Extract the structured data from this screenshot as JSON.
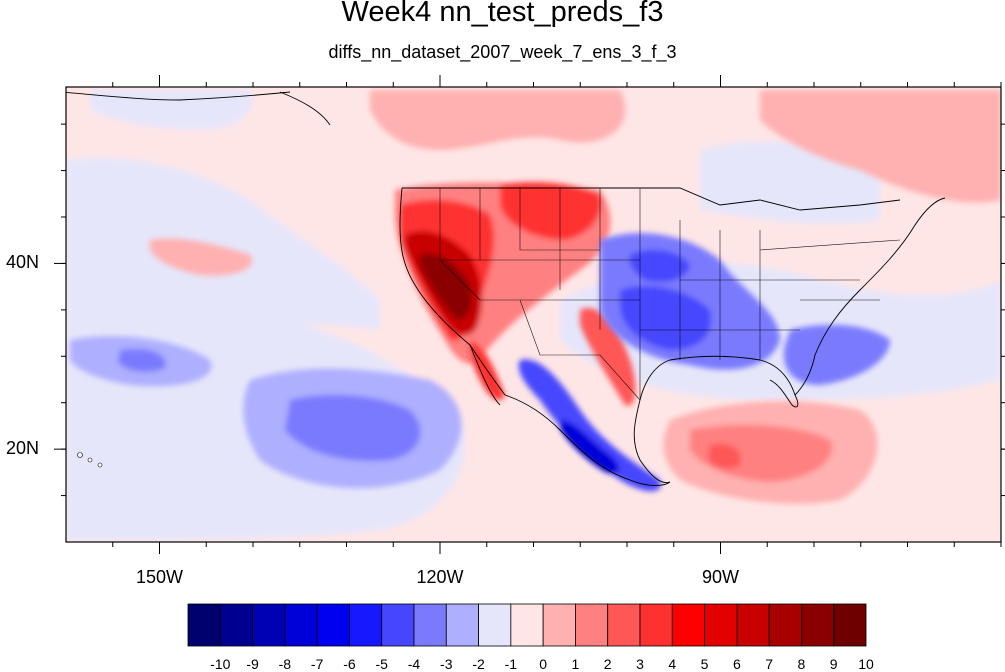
{
  "title": "Week4 nn_test_preds_f3",
  "subtitle": "diffs_nn_dataset_2007_week_7_ens_3_f_3",
  "map": {
    "projection": "cylindrical-equidistant",
    "lon_range": [
      -160,
      -60
    ],
    "lat_range": [
      10,
      59
    ],
    "lon_ticks": [
      {
        "lon": -150,
        "label": "150W"
      },
      {
        "lon": -120,
        "label": "120W"
      },
      {
        "lon": -90,
        "label": "90W"
      }
    ],
    "lat_ticks": [
      {
        "lat": 40,
        "label": "40N"
      },
      {
        "lat": 20,
        "label": "20N"
      }
    ],
    "features": [
      {
        "name": "strong warm anomaly over California and the US West Coast",
        "value": 10
      },
      {
        "name": "warm anomaly over the northern Rockies and Great Plains",
        "value": 5
      },
      {
        "name": "cold anomaly over the southern Great Plains and Gulf Coast",
        "value": -5
      },
      {
        "name": "cold anomaly along the Mexican Pacific coast",
        "value": -6
      },
      {
        "name": "warm anomaly over the Caribbean Sea",
        "value": 4
      },
      {
        "name": "cold anomaly over the eastern Pacific",
        "value": -3
      }
    ]
  },
  "colorbar": {
    "labels": [
      "-10",
      "-9",
      "-8",
      "-7",
      "-6",
      "-5",
      "-4",
      "-3",
      "-2",
      "-1",
      "0",
      "1",
      "2",
      "3",
      "4",
      "5",
      "6",
      "7",
      "8",
      "9",
      "10"
    ],
    "colors": [
      "#00006e",
      "#000090",
      "#0000b4",
      "#0000d8",
      "#0000f0",
      "#1818ff",
      "#4646ff",
      "#7a7aff",
      "#afafff",
      "#e6e6fa",
      "#ffe6e6",
      "#ffb0b0",
      "#ff8080",
      "#ff5656",
      "#ff3030",
      "#ff0000",
      "#e20000",
      "#c80000",
      "#a80000",
      "#8a0000",
      "#6e0000"
    ]
  }
}
